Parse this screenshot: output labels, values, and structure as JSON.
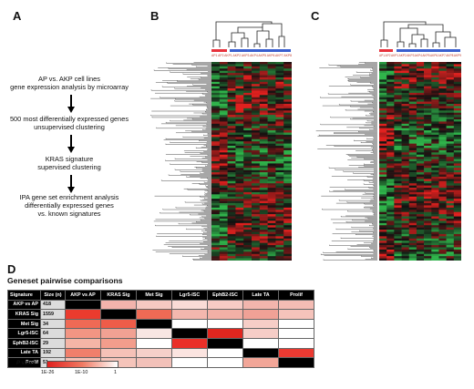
{
  "panels": {
    "a": "A",
    "b": "B",
    "c": "C",
    "d": "D"
  },
  "flow": {
    "step1": [
      "AP vs. AKP cell lines",
      "gene expression analysis by microarray"
    ],
    "step2": [
      "500 most differentially expressed genes",
      "unsupervised clustering"
    ],
    "step3": [
      "KRAS signature",
      "supervised clustering"
    ],
    "step4": [
      "IPA gene set enrichment analysis",
      "differentially expressed genes",
      "vs. known signatures"
    ]
  },
  "heatmap_b": {
    "group_bar_colors": [
      "#e8323c",
      "#3a5fcf"
    ],
    "sample_labels": [
      "AP1",
      "AP2",
      "AKP1",
      "AKP2",
      "AKP3",
      "AKP4",
      "AKP5",
      "AKP6",
      "AKP7",
      "AKP8"
    ]
  },
  "heatmap_c": {
    "group_bar_colors": [
      "#e8323c",
      "#3a5fcf"
    ],
    "sample_labels": [
      "AP1",
      "AP2",
      "AKP1",
      "AKP2",
      "AKP3",
      "AKP4",
      "AKP5",
      "AKP6",
      "AKP7",
      "AKP8",
      "AKP9"
    ]
  },
  "colors": {
    "up": "#e0201e",
    "down": "#2fb34a",
    "neutral": "#111111"
  },
  "table": {
    "title": "Geneset pairwise comparisons",
    "header": [
      "Signature",
      "Size (n)",
      "AKP vs AP",
      "KRAS Sig",
      "Met Sig",
      "Lgr5-ISC",
      "EphB2-ISC",
      "Late TA",
      "Prolif"
    ],
    "rows": [
      {
        "name": "AKP vs AP",
        "size": "418",
        "cells": [
          "#000000",
          "#f2b3ac",
          "#f6c8c2",
          "#f9dbd6",
          "#f7cbc5",
          "#f2b5ad",
          "#f4bcb4"
        ]
      },
      {
        "name": "KRAS Sig",
        "size": "1559",
        "cells": [
          "#ea3b2e",
          "#000000",
          "#ef6a55",
          "#f3b7ae",
          "#f2b0a6",
          "#f0a196",
          "#f5c3bb"
        ]
      },
      {
        "name": "Met Sig",
        "size": "34",
        "cells": [
          "#ef6a55",
          "#ee5c49",
          "#000000",
          "#ffffff",
          "#ffffff",
          "#f6cdc7",
          "#ffffff"
        ]
      },
      {
        "name": "Lgr5-ISC",
        "size": "64",
        "cells": [
          "#f29583",
          "#f1a193",
          "#f8e6e3",
          "#000000",
          "#e1261f",
          "#f6cdc7",
          "#ffffff"
        ]
      },
      {
        "name": "EphB2-ISC",
        "size": "29",
        "cells": [
          "#f5b5a6",
          "#f39d8c",
          "#ffffff",
          "#ea2f28",
          "#000000",
          "#ffffff",
          "#ffffff"
        ]
      },
      {
        "name": "Late TA",
        "size": "192",
        "cells": [
          "#f07f6b",
          "#f5c1b7",
          "#f6d0c9",
          "#fbe4e0",
          "#ffffff",
          "#000000",
          "#eb3a32"
        ]
      },
      {
        "name": "Prolif",
        "size": "51",
        "cells": [
          "#f6bfb3",
          "#f5c4ba",
          "#f3c1b9",
          "#ffffff",
          "#ffffff",
          "#f2a698",
          "#000000"
        ]
      }
    ]
  },
  "legend": {
    "label_p": "P",
    "label_rest": " value:",
    "ticks": [
      "1E-26",
      "1E-10",
      "1"
    ]
  }
}
